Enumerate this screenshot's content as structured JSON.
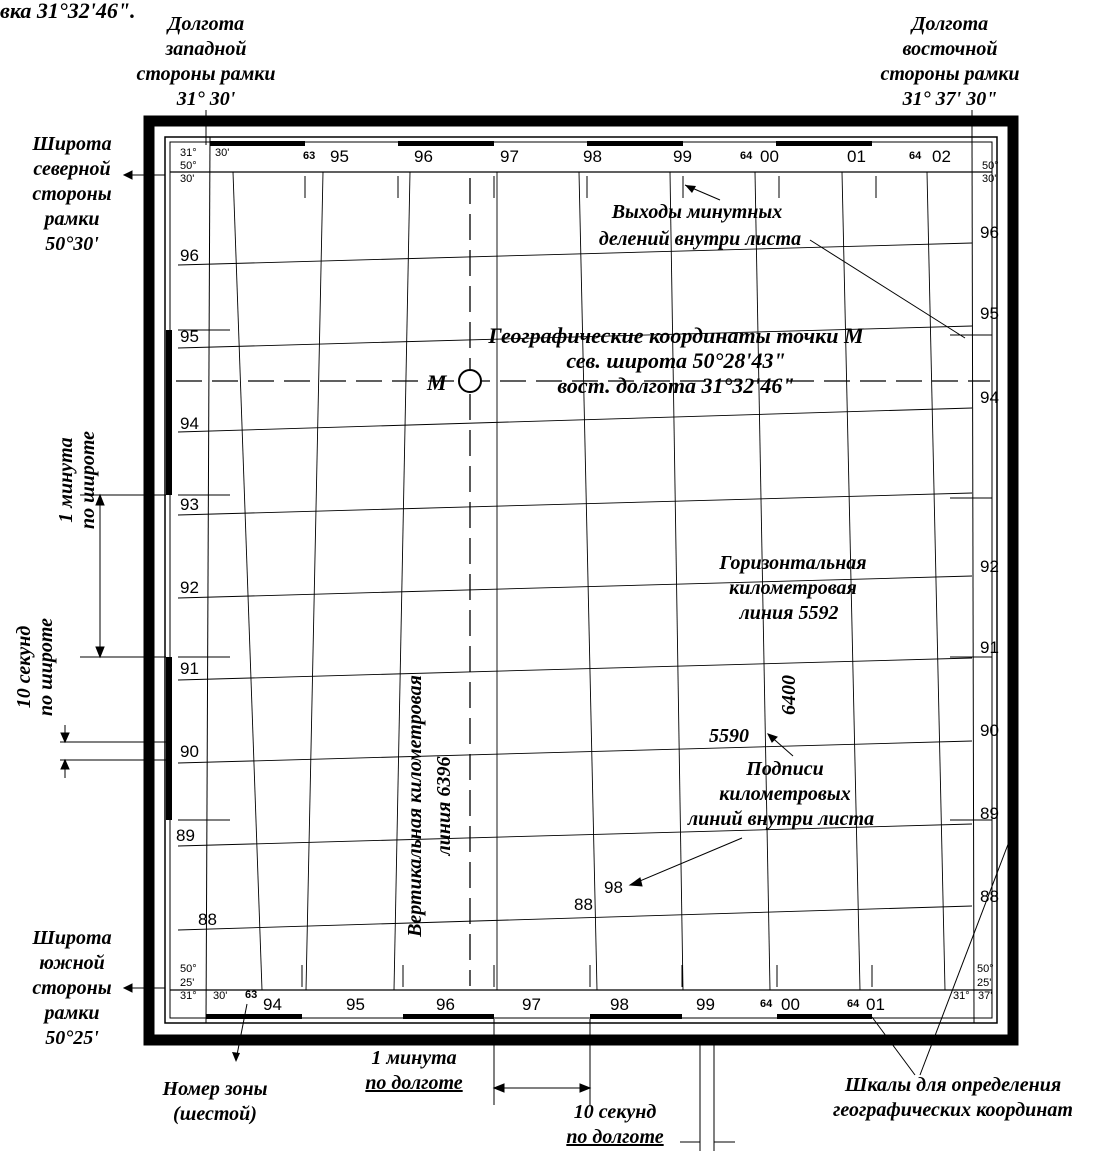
{
  "header_text": "вка 31°32'46\".",
  "frame_labels": {
    "west_lon": [
      "Долгота",
      "западной",
      "стороны  рамки",
      "31°  30'"
    ],
    "east_lon": [
      "Долгота",
      "восточной",
      "стороны  рамки",
      "31°    37'  30\""
    ],
    "north_lat": [
      "Широта",
      "северной",
      "стороны",
      "рамки",
      "50°30'"
    ],
    "south_lat": [
      "Широта",
      "южной",
      "стороны",
      "рамки",
      "50°25'"
    ]
  },
  "grid": {
    "top_x_labels": [
      "95",
      "96",
      "97",
      "98",
      "99",
      "00",
      "01",
      "02"
    ],
    "bottom_x_labels": [
      "94",
      "95",
      "96",
      "97",
      "98",
      "99",
      "00",
      "01"
    ],
    "left_y_labels": [
      "96",
      "95",
      "94",
      "93",
      "92",
      "91",
      "90",
      "89",
      "88"
    ],
    "right_y_labels": [
      "96",
      "95",
      "94",
      "92",
      "91",
      "90",
      "89",
      "88"
    ],
    "inner_labels": [
      "88",
      "98"
    ],
    "zone_marks": {
      "top_left": "63",
      "top_mid": "64",
      "top_right": "64",
      "bottom_left": "63",
      "bottom_mid": "64",
      "bottom_right": "64"
    }
  },
  "corners": {
    "top_left": [
      "31°",
      "30'",
      "50°",
      "30'"
    ],
    "top_right": [
      "50°",
      "30'"
    ],
    "bottom_left": [
      "50°",
      "25'",
      "31°",
      "30'"
    ],
    "bottom_right": [
      "50°",
      "25'",
      "31°",
      "37'"
    ]
  },
  "point_m": {
    "letter": "М",
    "title": "Географические координаты точки М",
    "lat": "сев. широта 50°28'43\"",
    "lon": "вост. долгота 31°32'46\""
  },
  "annotations": {
    "minute_exits": [
      "Выходы минутных",
      "делений внутри листа"
    ],
    "horizontal_km": [
      "Горизонтальная",
      "километровая",
      "линия 5592"
    ],
    "vertical_km": [
      "Вертикальная километровая",
      "линия  6396"
    ],
    "km_signatures": [
      "Подписи",
      "километровых",
      "линий внутри листа"
    ],
    "label_5590": "5590",
    "label_6400": "6400",
    "minute_lat": [
      "1 минута",
      "по широте"
    ],
    "ten_sec_lat": [
      "10 секунд",
      "по широте"
    ],
    "minute_lon": [
      "1 минута",
      "по долготе"
    ],
    "ten_sec_lon": [
      "10 секунд",
      "по долготе"
    ],
    "zone_number": [
      "Номер зоны",
      "(шестой)"
    ],
    "scales": [
      "Шкалы для определения",
      "географических координат"
    ]
  },
  "colors": {
    "ink": "#000000",
    "paper": "#ffffff"
  }
}
